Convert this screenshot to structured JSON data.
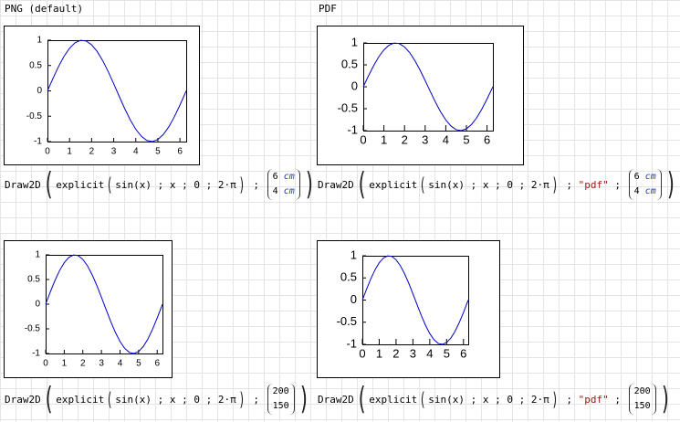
{
  "labels": [
    "PNG (default)",
    "PDF"
  ],
  "chart_data": [
    {
      "type": "line",
      "color": "#0000cc",
      "grid": false,
      "xlim": [
        0,
        6.283
      ],
      "ylim": [
        -1,
        1
      ],
      "xticks": [
        0,
        1,
        2,
        3,
        4,
        5,
        6
      ],
      "yticks": [
        -1,
        -0.5,
        0,
        0.5,
        1
      ],
      "x": [
        0,
        0.25,
        0.5,
        0.75,
        1,
        1.25,
        1.5,
        1.75,
        2,
        2.25,
        2.5,
        2.75,
        3,
        3.25,
        3.5,
        3.75,
        4,
        4.25,
        4.5,
        4.75,
        5,
        5.25,
        5.5,
        5.75,
        6,
        6.25,
        6.283
      ],
      "values": [
        0,
        0.247,
        0.479,
        0.682,
        0.841,
        0.949,
        0.997,
        0.984,
        0.909,
        0.778,
        0.598,
        0.382,
        0.141,
        -0.108,
        -0.351,
        -0.572,
        -0.757,
        -0.895,
        -0.978,
        -0.999,
        -0.959,
        -0.859,
        -0.706,
        -0.508,
        -0.279,
        -0.033,
        0
      ]
    },
    {
      "type": "line",
      "color": "#0000cc",
      "grid": false,
      "xlim": [
        0,
        6.283
      ],
      "ylim": [
        -1,
        1
      ],
      "xticks": [
        0,
        1,
        2,
        3,
        4,
        5,
        6
      ],
      "yticks": [
        -1,
        -0.5,
        0,
        0.5,
        1
      ],
      "x": [
        0,
        0.25,
        0.5,
        0.75,
        1,
        1.25,
        1.5,
        1.75,
        2,
        2.25,
        2.5,
        2.75,
        3,
        3.25,
        3.5,
        3.75,
        4,
        4.25,
        4.5,
        4.75,
        5,
        5.25,
        5.5,
        5.75,
        6,
        6.25,
        6.283
      ],
      "values": [
        0,
        0.247,
        0.479,
        0.682,
        0.841,
        0.949,
        0.997,
        0.984,
        0.909,
        0.778,
        0.598,
        0.382,
        0.141,
        -0.108,
        -0.351,
        -0.572,
        -0.757,
        -0.895,
        -0.978,
        -0.999,
        -0.959,
        -0.859,
        -0.706,
        -0.508,
        -0.279,
        -0.033,
        0
      ]
    },
    {
      "type": "line",
      "color": "#0000cc",
      "grid": false,
      "xlim": [
        0,
        6.283
      ],
      "ylim": [
        -1,
        1
      ],
      "xticks": [
        0,
        1,
        2,
        3,
        4,
        5,
        6
      ],
      "yticks": [
        -1,
        -0.5,
        0,
        0.5,
        1
      ],
      "x": [
        0,
        0.25,
        0.5,
        0.75,
        1,
        1.25,
        1.5,
        1.75,
        2,
        2.25,
        2.5,
        2.75,
        3,
        3.25,
        3.5,
        3.75,
        4,
        4.25,
        4.5,
        4.75,
        5,
        5.25,
        5.5,
        5.75,
        6,
        6.25,
        6.283
      ],
      "values": [
        0,
        0.247,
        0.479,
        0.682,
        0.841,
        0.949,
        0.997,
        0.984,
        0.909,
        0.778,
        0.598,
        0.382,
        0.141,
        -0.108,
        -0.351,
        -0.572,
        -0.757,
        -0.895,
        -0.978,
        -0.999,
        -0.959,
        -0.859,
        -0.706,
        -0.508,
        -0.279,
        -0.033,
        0
      ]
    },
    {
      "type": "line",
      "color": "#0000cc",
      "grid": false,
      "xlim": [
        0,
        6.283
      ],
      "ylim": [
        -1,
        1
      ],
      "xticks": [
        0,
        1,
        2,
        3,
        4,
        5,
        6
      ],
      "yticks": [
        -1,
        -0.5,
        0,
        0.5,
        1
      ],
      "x": [
        0,
        0.25,
        0.5,
        0.75,
        1,
        1.25,
        1.5,
        1.75,
        2,
        2.25,
        2.5,
        2.75,
        3,
        3.25,
        3.5,
        3.75,
        4,
        4.25,
        4.5,
        4.75,
        5,
        5.25,
        5.5,
        5.75,
        6,
        6.25,
        6.283
      ],
      "values": [
        0,
        0.247,
        0.479,
        0.682,
        0.841,
        0.949,
        0.997,
        0.984,
        0.909,
        0.778,
        0.598,
        0.382,
        0.141,
        -0.108,
        -0.351,
        -0.572,
        -0.757,
        -0.895,
        -0.978,
        -0.999,
        -0.959,
        -0.859,
        -0.706,
        -0.508,
        -0.279,
        -0.033,
        0
      ]
    }
  ],
  "formulas": [
    {
      "head": "Draw2D",
      "fn": "explicit",
      "args": "sin(x) ; x ; 0 ; 2·π",
      "size": [
        {
          "num": "6",
          "unit": "cm"
        },
        {
          "num": "4",
          "unit": "cm"
        }
      ]
    },
    {
      "head": "Draw2D",
      "fn": "explicit",
      "args": "sin(x) ; x ; 0 ; 2·π",
      "format": "\"pdf\"",
      "size": [
        {
          "num": "6",
          "unit": "cm"
        },
        {
          "num": "4",
          "unit": "cm"
        }
      ]
    },
    {
      "head": "Draw2D",
      "fn": "explicit",
      "args": "sin(x) ; x ; 0 ; 2·π",
      "size": [
        {
          "num": "200"
        },
        {
          "num": "150"
        }
      ]
    },
    {
      "head": "Draw2D",
      "fn": "explicit",
      "args": "sin(x) ; x ; 0 ; 2·π",
      "format": "\"pdf\"",
      "size": [
        {
          "num": "200"
        },
        {
          "num": "150"
        }
      ]
    }
  ]
}
